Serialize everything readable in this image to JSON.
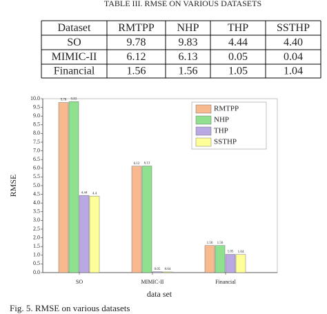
{
  "title": "TABLE III. RMSE ON VARIOUS DATASETS",
  "table": {
    "header": [
      "Dataset",
      "RMTPP",
      "NHP",
      "THP",
      "SSTHP"
    ],
    "rows": [
      [
        "SO",
        "9.78",
        "9.83",
        "4.44",
        "4.40"
      ],
      [
        "MIMIC-II",
        "6.12",
        "6.13",
        "0.05",
        "0.04"
      ],
      [
        "Financial",
        "1.56",
        "1.56",
        "1.05",
        "1.04"
      ]
    ]
  },
  "chart_data": {
    "type": "bar",
    "xlabel": "data set",
    "ylabel": "RMSE",
    "categories": [
      "SO",
      "MIMIC-II",
      "Financial"
    ],
    "series": [
      {
        "name": "RMTPP",
        "color": "#f9b98f",
        "values": [
          9.78,
          6.12,
          1.56
        ]
      },
      {
        "name": "NHP",
        "color": "#8fe08f",
        "values": [
          9.83,
          6.13,
          1.56
        ]
      },
      {
        "name": "THP",
        "color": "#b9a8e2",
        "values": [
          4.44,
          0.05,
          1.05
        ]
      },
      {
        "name": "SSTHP",
        "color": "#ffff99",
        "values": [
          4.4,
          0.04,
          1.04
        ]
      }
    ],
    "ylim": [
      0,
      10
    ],
    "yticks": [
      {
        "value": 0,
        "label": "0.0"
      },
      0.5,
      {
        "value": 1,
        "label": "1.0"
      },
      1.5,
      {
        "value": 2,
        "label": "2.0"
      },
      2.5,
      {
        "value": 3,
        "label": "3.0"
      },
      3.5,
      {
        "value": 4,
        "label": "4.0"
      },
      4.5,
      {
        "value": 5,
        "label": "5.0"
      },
      5.5,
      {
        "value": 6,
        "label": "6.0"
      },
      6.5,
      {
        "value": 7,
        "label": "7.0"
      },
      7.5,
      {
        "value": 8,
        "label": "8.0"
      },
      8.5,
      {
        "value": 9,
        "label": "9.0"
      },
      9.5,
      {
        "value": 10,
        "label": "10.0"
      }
    ],
    "legend": "upper right"
  },
  "caption": "Fig. 5. RMSE on various datasets"
}
